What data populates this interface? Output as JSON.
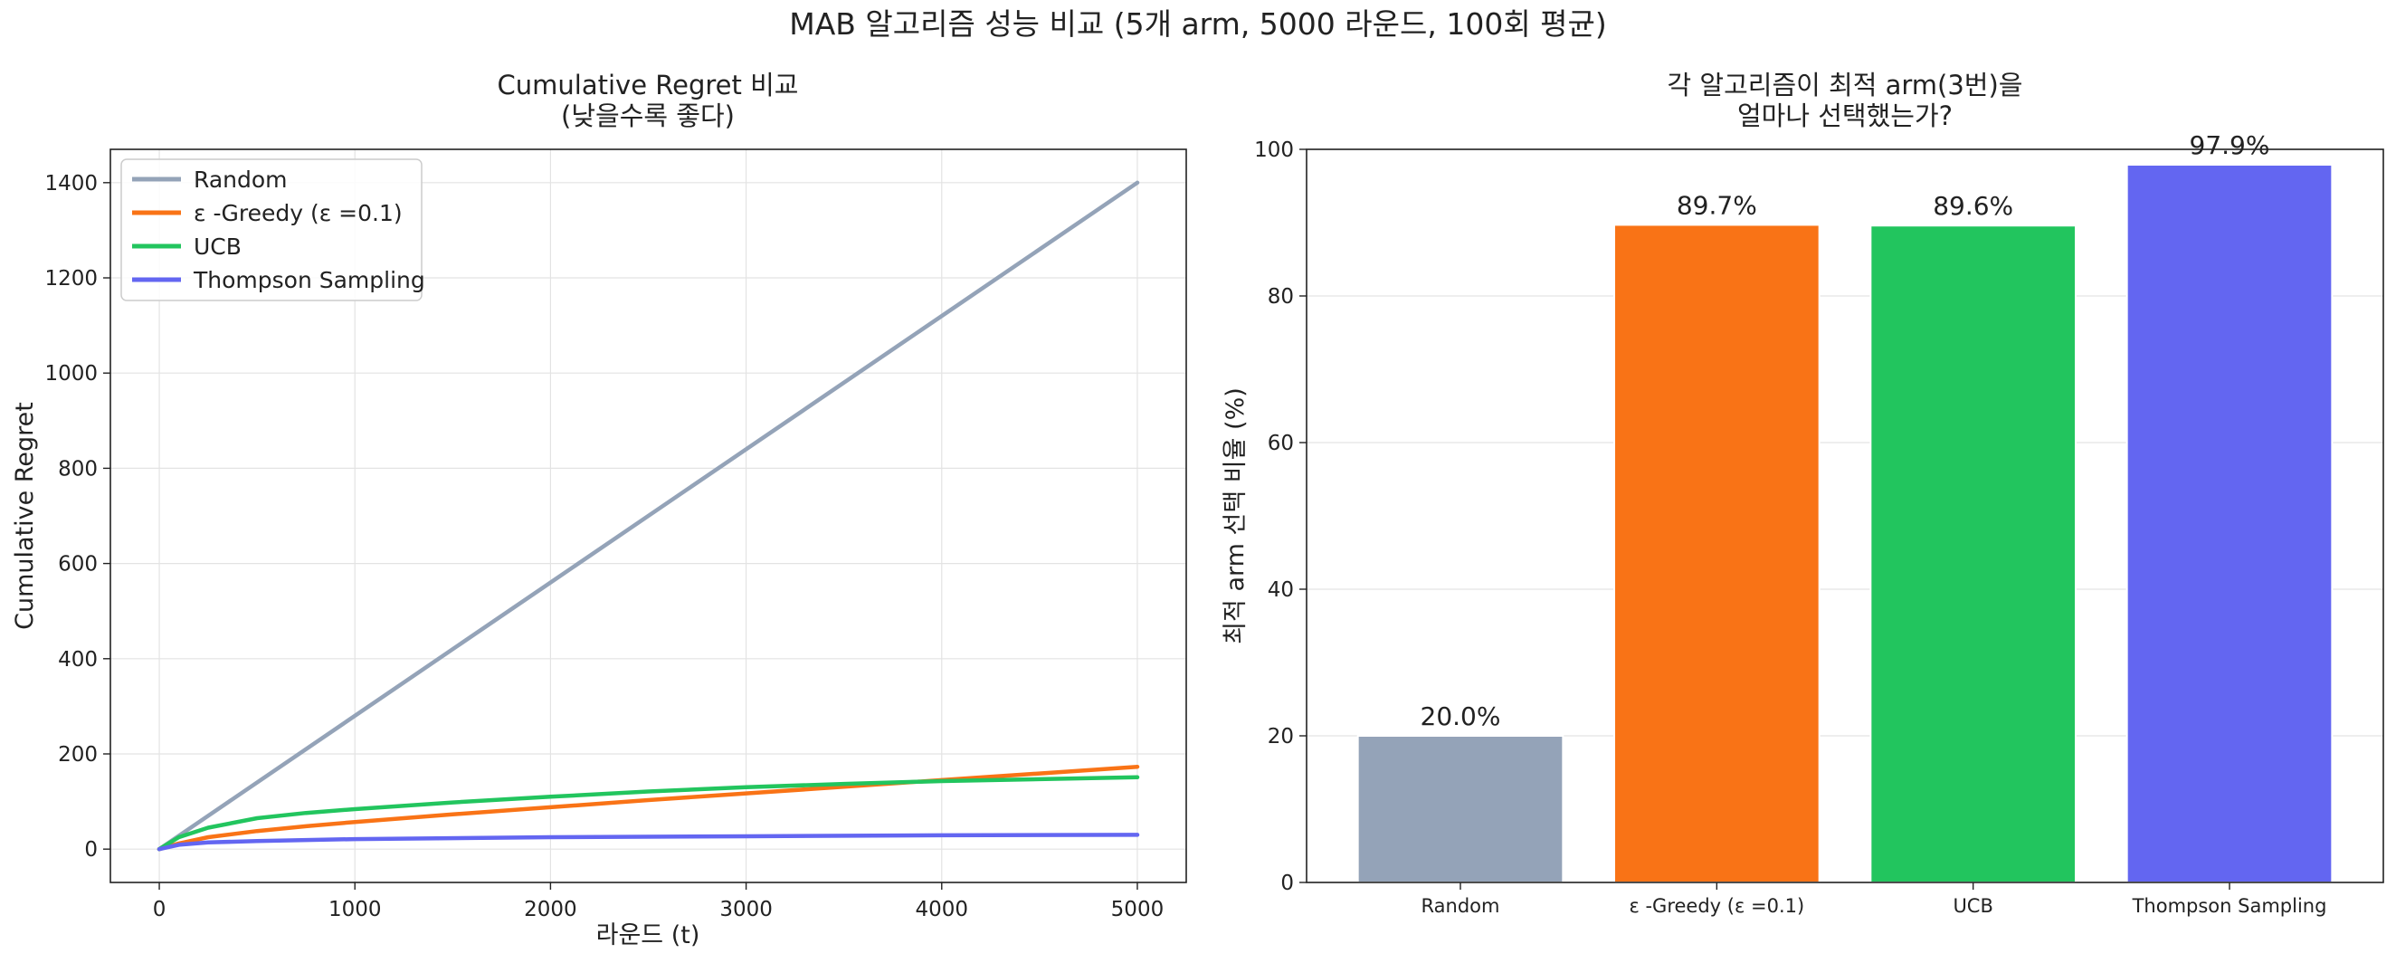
{
  "figure": {
    "title": "MAB 알고리즘 성능 비교 (5개 arm, 5000 라운드, 100회 평균)"
  },
  "chart_data": [
    {
      "type": "line",
      "title": "Cumulative Regret 비교",
      "subtitle": "(낮을수록 좋다)",
      "xlabel": "라운드 (t)",
      "ylabel": "Cumulative Regret",
      "xlim": [
        -250,
        5250
      ],
      "ylim": [
        -70,
        1470
      ],
      "xticks": [
        0,
        1000,
        2000,
        3000,
        4000,
        5000
      ],
      "yticks": [
        0,
        200,
        400,
        600,
        800,
        1000,
        1200,
        1400
      ],
      "grid": true,
      "legend_position": "top-left",
      "series": [
        {
          "name": "Random",
          "color": "#94a3b8",
          "x": [
            0,
            1000,
            2000,
            3000,
            4000,
            5000
          ],
          "y": [
            0,
            280,
            560,
            840,
            1120,
            1400
          ]
        },
        {
          "name": "ε -Greedy (ε =0.1)",
          "color": "#f97316",
          "x": [
            0,
            100,
            250,
            500,
            750,
            1000,
            1500,
            2000,
            2500,
            3000,
            3500,
            4000,
            4500,
            5000
          ],
          "y": [
            0,
            12,
            25,
            38,
            48,
            57,
            73,
            88,
            103,
            117,
            131,
            145,
            159,
            173
          ]
        },
        {
          "name": "UCB",
          "color": "#22c55e",
          "x": [
            0,
            100,
            250,
            500,
            750,
            1000,
            1500,
            2000,
            2500,
            3000,
            3500,
            4000,
            4500,
            5000
          ],
          "y": [
            0,
            25,
            45,
            65,
            76,
            84,
            98,
            110,
            121,
            130,
            137,
            143,
            147,
            151
          ]
        },
        {
          "name": "Thompson Sampling",
          "color": "#6366f1",
          "x": [
            0,
            100,
            250,
            500,
            1000,
            2000,
            3000,
            4000,
            5000
          ],
          "y": [
            0,
            9,
            14,
            17,
            21,
            25,
            27,
            29,
            30
          ]
        }
      ]
    },
    {
      "type": "bar",
      "title": "각 알고리즘이 최적 arm(3번)을",
      "subtitle": "얼마나 선택했는가?",
      "xlabel": "",
      "ylabel": "최적 arm 선택 비율 (%)",
      "ylim": [
        0,
        100
      ],
      "yticks": [
        0,
        20,
        40,
        60,
        80,
        100
      ],
      "grid": true,
      "categories": [
        "Random",
        "ε -Greedy (ε =0.1)",
        "UCB",
        "Thompson Sampling"
      ],
      "values": [
        20.0,
        89.7,
        89.6,
        97.9
      ],
      "value_labels": [
        "20.0%",
        "89.7%",
        "89.6%",
        "97.9%"
      ],
      "colors": [
        "#94a3b8",
        "#f97316",
        "#22c55e",
        "#6366f1"
      ]
    }
  ]
}
